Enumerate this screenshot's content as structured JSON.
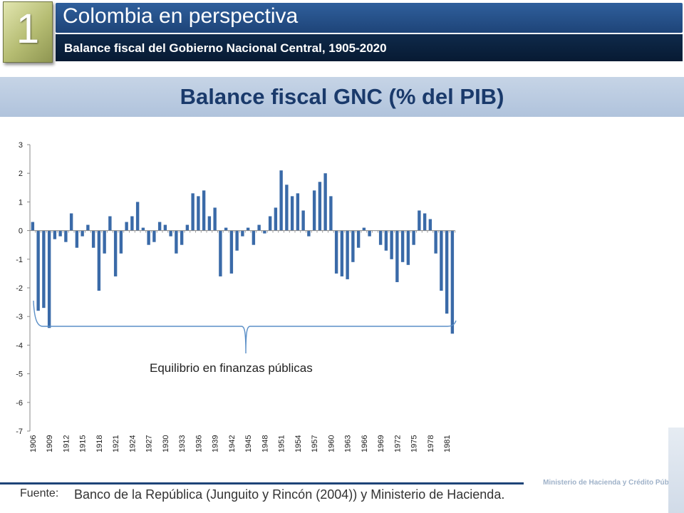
{
  "header": {
    "number": "1",
    "title": "Colombia en perspectiva",
    "subtitle": "Balance fiscal del Gobierno Nacional Central, 1905-2020"
  },
  "chart_heading": "Balance fiscal GNC  (% del PIB)",
  "annotation": "Equilibrio en finanzas públicas",
  "footer": {
    "label": "Fuente:",
    "text": "Banco de la República (Junguito y Rincón (2004)) y Ministerio de Hacienda.",
    "ministry": "Ministerio de Hacienda y Crédito Público"
  },
  "colors": {
    "bar": "#3a6aa8",
    "title_bar": "#2f5f9c",
    "subtitle_bar": "#0f2a4a"
  },
  "chart_data": {
    "type": "bar",
    "ylim": [
      -7,
      3
    ],
    "yticks": [
      3,
      2,
      1,
      0,
      -1,
      -2,
      -3,
      -4,
      -5,
      -6,
      -7
    ],
    "tick_labels": [
      "1906",
      "1909",
      "1912",
      "1915",
      "1918",
      "1921",
      "1924",
      "1927",
      "1930",
      "1933",
      "1936",
      "1939",
      "1942",
      "1945",
      "1948",
      "1951",
      "1954",
      "1957",
      "1960",
      "1963",
      "1966",
      "1969",
      "1972",
      "1975",
      "1978",
      "1981"
    ],
    "x_start": 1906,
    "values": [
      0.3,
      -2.8,
      -2.7,
      -3.4,
      -0.3,
      -0.2,
      -0.4,
      0.6,
      -0.6,
      -0.2,
      0.2,
      -0.6,
      -2.1,
      -0.8,
      0.5,
      -1.6,
      -0.8,
      0.3,
      0.5,
      1.0,
      0.1,
      -0.5,
      -0.4,
      0.3,
      0.2,
      -0.2,
      -0.8,
      -0.5,
      0.2,
      1.3,
      1.2,
      1.4,
      0.5,
      0.8,
      -1.6,
      0.1,
      -1.5,
      -0.7,
      -0.2,
      0.1,
      -0.5,
      0.2,
      -0.1,
      0.5,
      0.8,
      2.1,
      1.6,
      1.2,
      1.3,
      0.7,
      -0.2,
      1.4,
      1.7,
      2.0,
      1.2,
      -1.5,
      -1.6,
      -1.7,
      -1.1,
      -0.6,
      0.1,
      -0.2,
      0.0,
      -0.5,
      -0.7,
      -1.0,
      -1.8,
      -1.1,
      -1.2,
      -0.5,
      0.7,
      0.6,
      0.4,
      -0.8,
      -2.1,
      -2.9,
      -3.6
    ],
    "grid": false
  }
}
